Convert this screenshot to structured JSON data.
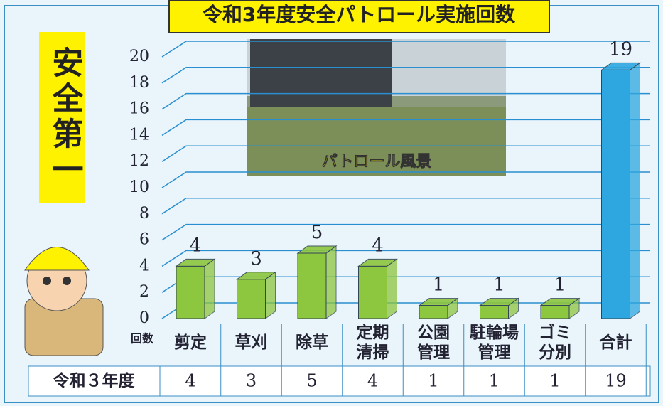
{
  "chart_data": {
    "type": "bar",
    "title": "令和3年度安全パトロール実施回数",
    "side_text": "安全第一",
    "photo_caption": "パトロール風景",
    "y_label": "回数",
    "row_label": "令和３年度",
    "categories": [
      "剪定",
      "草刈",
      "除草",
      "定期\n清掃",
      "公園\n管理",
      "駐輪場\n管理",
      "ゴミ\n分別",
      "合計"
    ],
    "values": [
      4,
      3,
      5,
      4,
      1,
      1,
      1,
      19
    ],
    "colors": [
      "#8dc63f",
      "#8dc63f",
      "#8dc63f",
      "#8dc63f",
      "#8dc63f",
      "#8dc63f",
      "#8dc63f",
      "#2ea7e0"
    ],
    "ylim": [
      0,
      20
    ],
    "yticks": [
      0,
      2,
      4,
      6,
      8,
      10,
      12,
      14,
      16,
      18,
      20
    ],
    "grid": true
  }
}
